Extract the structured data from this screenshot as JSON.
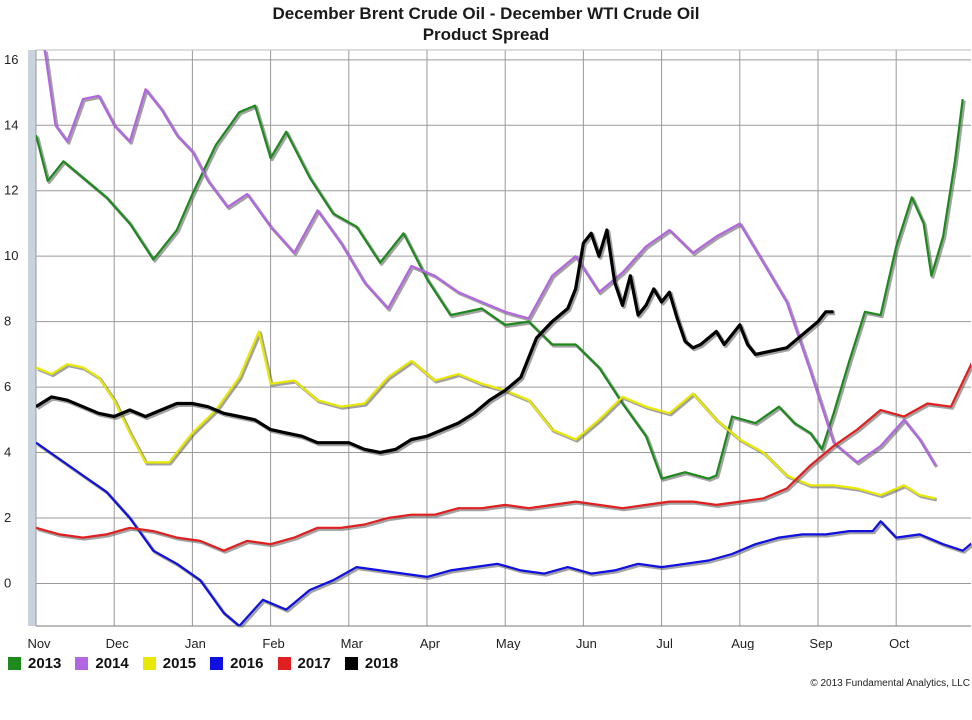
{
  "title_line1": "December Brent Crude Oil - December WTI Crude Oil",
  "title_line2": "Product Spread",
  "copyright": "© 2013 Fundamental Analytics, LLC",
  "chart_data": {
    "type": "line",
    "title": "December Brent Crude Oil - December WTI Crude Oil Product Spread",
    "xlabel": "",
    "ylabel": "",
    "ylim": [
      -1.3,
      16.3
    ],
    "y_ticks": [
      0,
      2,
      4,
      6,
      8,
      10,
      12,
      14,
      16
    ],
    "x_ticks": [
      "Nov",
      "Dec",
      "Jan",
      "Feb",
      "Mar",
      "Apr",
      "May",
      "Jun",
      "Jul",
      "Aug",
      "Sep",
      "Oct"
    ],
    "x_range_months": [
      0,
      11.85
    ],
    "grid": true,
    "legend_position": "bottom-left",
    "series": [
      {
        "name": "2013",
        "color": "#1e8a1e",
        "points": [
          [
            0,
            13.7
          ],
          [
            0.15,
            12.3
          ],
          [
            0.35,
            12.9
          ],
          [
            0.6,
            12.4
          ],
          [
            0.9,
            11.8
          ],
          [
            1.2,
            11.0
          ],
          [
            1.5,
            9.9
          ],
          [
            1.8,
            10.8
          ],
          [
            2.0,
            11.9
          ],
          [
            2.3,
            13.4
          ],
          [
            2.6,
            14.4
          ],
          [
            2.8,
            14.6
          ],
          [
            3.0,
            13.0
          ],
          [
            3.2,
            13.8
          ],
          [
            3.5,
            12.4
          ],
          [
            3.8,
            11.3
          ],
          [
            4.1,
            10.9
          ],
          [
            4.4,
            9.8
          ],
          [
            4.7,
            10.7
          ],
          [
            5.0,
            9.3
          ],
          [
            5.3,
            8.2
          ],
          [
            5.7,
            8.4
          ],
          [
            6.0,
            7.9
          ],
          [
            6.3,
            8.0
          ],
          [
            6.6,
            7.3
          ],
          [
            6.9,
            7.3
          ],
          [
            7.2,
            6.6
          ],
          [
            7.5,
            5.5
          ],
          [
            7.8,
            4.5
          ],
          [
            8.0,
            3.2
          ],
          [
            8.3,
            3.4
          ],
          [
            8.6,
            3.2
          ],
          [
            8.7,
            3.3
          ],
          [
            8.9,
            5.1
          ],
          [
            9.2,
            4.9
          ],
          [
            9.5,
            5.4
          ],
          [
            9.7,
            4.9
          ],
          [
            9.9,
            4.6
          ],
          [
            10.05,
            4.1
          ],
          [
            10.2,
            5.2
          ],
          [
            10.4,
            6.8
          ],
          [
            10.6,
            8.3
          ],
          [
            10.8,
            8.2
          ],
          [
            11.0,
            10.3
          ],
          [
            11.2,
            11.8
          ],
          [
            11.35,
            11.0
          ],
          [
            11.45,
            9.4
          ],
          [
            11.6,
            10.6
          ],
          [
            11.75,
            12.9
          ],
          [
            11.85,
            14.8
          ]
        ]
      },
      {
        "name": "2014",
        "color": "#b266e0",
        "points": [
          [
            0.1,
            16.5
          ],
          [
            0.25,
            14.0
          ],
          [
            0.4,
            13.5
          ],
          [
            0.6,
            14.8
          ],
          [
            0.8,
            14.9
          ],
          [
            1.0,
            14.0
          ],
          [
            1.2,
            13.5
          ],
          [
            1.4,
            15.1
          ],
          [
            1.6,
            14.5
          ],
          [
            1.8,
            13.7
          ],
          [
            2.0,
            13.2
          ],
          [
            2.2,
            12.3
          ],
          [
            2.45,
            11.5
          ],
          [
            2.7,
            11.9
          ],
          [
            3.0,
            10.9
          ],
          [
            3.3,
            10.1
          ],
          [
            3.6,
            11.4
          ],
          [
            3.9,
            10.4
          ],
          [
            4.2,
            9.2
          ],
          [
            4.5,
            8.4
          ],
          [
            4.8,
            9.7
          ],
          [
            5.1,
            9.4
          ],
          [
            5.4,
            8.9
          ],
          [
            5.7,
            8.6
          ],
          [
            6.0,
            8.3
          ],
          [
            6.3,
            8.1
          ],
          [
            6.6,
            9.4
          ],
          [
            6.9,
            10.0
          ],
          [
            7.2,
            8.9
          ],
          [
            7.5,
            9.5
          ],
          [
            7.8,
            10.3
          ],
          [
            8.1,
            10.8
          ],
          [
            8.4,
            10.1
          ],
          [
            8.7,
            10.6
          ],
          [
            9.0,
            11.0
          ],
          [
            9.3,
            9.8
          ],
          [
            9.6,
            8.6
          ],
          [
            9.9,
            6.5
          ],
          [
            10.2,
            4.3
          ],
          [
            10.5,
            3.7
          ],
          [
            10.8,
            4.2
          ],
          [
            11.1,
            5.0
          ],
          [
            11.3,
            4.4
          ],
          [
            11.5,
            3.6
          ]
        ]
      },
      {
        "name": "2015",
        "color": "#e8e800",
        "points": [
          [
            0,
            6.6
          ],
          [
            0.2,
            6.4
          ],
          [
            0.4,
            6.7
          ],
          [
            0.6,
            6.6
          ],
          [
            0.8,
            6.3
          ],
          [
            1.0,
            5.6
          ],
          [
            1.2,
            4.6
          ],
          [
            1.4,
            3.7
          ],
          [
            1.7,
            3.7
          ],
          [
            2.0,
            4.6
          ],
          [
            2.3,
            5.3
          ],
          [
            2.6,
            6.3
          ],
          [
            2.85,
            7.7
          ],
          [
            3.0,
            6.1
          ],
          [
            3.3,
            6.2
          ],
          [
            3.6,
            5.6
          ],
          [
            3.9,
            5.4
          ],
          [
            4.2,
            5.5
          ],
          [
            4.5,
            6.3
          ],
          [
            4.8,
            6.8
          ],
          [
            5.1,
            6.2
          ],
          [
            5.4,
            6.4
          ],
          [
            5.7,
            6.1
          ],
          [
            6.0,
            5.9
          ],
          [
            6.3,
            5.6
          ],
          [
            6.6,
            4.7
          ],
          [
            6.9,
            4.4
          ],
          [
            7.2,
            5.0
          ],
          [
            7.5,
            5.7
          ],
          [
            7.8,
            5.4
          ],
          [
            8.1,
            5.2
          ],
          [
            8.4,
            5.8
          ],
          [
            8.7,
            5.0
          ],
          [
            9.0,
            4.4
          ],
          [
            9.3,
            4.0
          ],
          [
            9.6,
            3.3
          ],
          [
            9.9,
            3.0
          ],
          [
            10.2,
            3.0
          ],
          [
            10.5,
            2.9
          ],
          [
            10.8,
            2.7
          ],
          [
            11.1,
            3.0
          ],
          [
            11.3,
            2.7
          ],
          [
            11.5,
            2.6
          ]
        ]
      },
      {
        "name": "2016",
        "color": "#1010e0",
        "points": [
          [
            0,
            4.3
          ],
          [
            0.3,
            3.8
          ],
          [
            0.6,
            3.3
          ],
          [
            0.9,
            2.8
          ],
          [
            1.2,
            2.0
          ],
          [
            1.5,
            1.0
          ],
          [
            1.8,
            0.6
          ],
          [
            2.1,
            0.1
          ],
          [
            2.4,
            -0.9
          ],
          [
            2.6,
            -1.3
          ],
          [
            2.9,
            -0.5
          ],
          [
            3.2,
            -0.8
          ],
          [
            3.5,
            -0.2
          ],
          [
            3.8,
            0.1
          ],
          [
            4.1,
            0.5
          ],
          [
            4.4,
            0.4
          ],
          [
            4.7,
            0.3
          ],
          [
            5.0,
            0.2
          ],
          [
            5.3,
            0.4
          ],
          [
            5.6,
            0.5
          ],
          [
            5.9,
            0.6
          ],
          [
            6.2,
            0.4
          ],
          [
            6.5,
            0.3
          ],
          [
            6.8,
            0.5
          ],
          [
            7.1,
            0.3
          ],
          [
            7.4,
            0.4
          ],
          [
            7.7,
            0.6
          ],
          [
            8.0,
            0.5
          ],
          [
            8.3,
            0.6
          ],
          [
            8.6,
            0.7
          ],
          [
            8.9,
            0.9
          ],
          [
            9.2,
            1.2
          ],
          [
            9.5,
            1.4
          ],
          [
            9.8,
            1.5
          ],
          [
            10.1,
            1.5
          ],
          [
            10.4,
            1.6
          ],
          [
            10.7,
            1.6
          ],
          [
            10.8,
            1.9
          ],
          [
            11.0,
            1.4
          ],
          [
            11.3,
            1.5
          ],
          [
            11.6,
            1.2
          ],
          [
            11.85,
            1.0
          ],
          [
            12.0,
            1.3
          ]
        ]
      },
      {
        "name": "2017",
        "color": "#e02020",
        "points": [
          [
            0,
            1.7
          ],
          [
            0.3,
            1.5
          ],
          [
            0.6,
            1.4
          ],
          [
            0.9,
            1.5
          ],
          [
            1.2,
            1.7
          ],
          [
            1.5,
            1.6
          ],
          [
            1.8,
            1.4
          ],
          [
            2.1,
            1.3
          ],
          [
            2.4,
            1.0
          ],
          [
            2.7,
            1.3
          ],
          [
            3.0,
            1.2
          ],
          [
            3.3,
            1.4
          ],
          [
            3.6,
            1.7
          ],
          [
            3.9,
            1.7
          ],
          [
            4.2,
            1.8
          ],
          [
            4.5,
            2.0
          ],
          [
            4.8,
            2.1
          ],
          [
            5.1,
            2.1
          ],
          [
            5.4,
            2.3
          ],
          [
            5.7,
            2.3
          ],
          [
            6.0,
            2.4
          ],
          [
            6.3,
            2.3
          ],
          [
            6.6,
            2.4
          ],
          [
            6.9,
            2.5
          ],
          [
            7.2,
            2.4
          ],
          [
            7.5,
            2.3
          ],
          [
            7.8,
            2.4
          ],
          [
            8.1,
            2.5
          ],
          [
            8.4,
            2.5
          ],
          [
            8.7,
            2.4
          ],
          [
            9.0,
            2.5
          ],
          [
            9.3,
            2.6
          ],
          [
            9.6,
            2.9
          ],
          [
            9.9,
            3.6
          ],
          [
            10.2,
            4.2
          ],
          [
            10.5,
            4.7
          ],
          [
            10.8,
            5.3
          ],
          [
            11.1,
            5.1
          ],
          [
            11.4,
            5.5
          ],
          [
            11.7,
            5.4
          ],
          [
            12.0,
            6.9
          ]
        ]
      },
      {
        "name": "2018",
        "color": "#000000",
        "points": [
          [
            0,
            5.4
          ],
          [
            0.2,
            5.7
          ],
          [
            0.4,
            5.6
          ],
          [
            0.6,
            5.4
          ],
          [
            0.8,
            5.2
          ],
          [
            1.0,
            5.1
          ],
          [
            1.2,
            5.3
          ],
          [
            1.4,
            5.1
          ],
          [
            1.6,
            5.3
          ],
          [
            1.8,
            5.5
          ],
          [
            2.0,
            5.5
          ],
          [
            2.2,
            5.4
          ],
          [
            2.4,
            5.2
          ],
          [
            2.6,
            5.1
          ],
          [
            2.8,
            5.0
          ],
          [
            3.0,
            4.7
          ],
          [
            3.2,
            4.6
          ],
          [
            3.4,
            4.5
          ],
          [
            3.6,
            4.3
          ],
          [
            3.8,
            4.3
          ],
          [
            4.0,
            4.3
          ],
          [
            4.2,
            4.1
          ],
          [
            4.4,
            4.0
          ],
          [
            4.6,
            4.1
          ],
          [
            4.8,
            4.4
          ],
          [
            5.0,
            4.5
          ],
          [
            5.2,
            4.7
          ],
          [
            5.4,
            4.9
          ],
          [
            5.6,
            5.2
          ],
          [
            5.8,
            5.6
          ],
          [
            6.0,
            5.9
          ],
          [
            6.2,
            6.3
          ],
          [
            6.4,
            7.5
          ],
          [
            6.6,
            8.0
          ],
          [
            6.8,
            8.4
          ],
          [
            6.9,
            9.0
          ],
          [
            7.0,
            10.4
          ],
          [
            7.1,
            10.7
          ],
          [
            7.2,
            10.0
          ],
          [
            7.3,
            10.8
          ],
          [
            7.4,
            9.2
          ],
          [
            7.5,
            8.5
          ],
          [
            7.6,
            9.4
          ],
          [
            7.7,
            8.2
          ],
          [
            7.8,
            8.5
          ],
          [
            7.9,
            9.0
          ],
          [
            8.0,
            8.6
          ],
          [
            8.1,
            8.9
          ],
          [
            8.2,
            8.1
          ],
          [
            8.3,
            7.4
          ],
          [
            8.4,
            7.2
          ],
          [
            8.5,
            7.3
          ],
          [
            8.6,
            7.5
          ],
          [
            8.7,
            7.7
          ],
          [
            8.8,
            7.3
          ],
          [
            8.9,
            7.6
          ],
          [
            9.0,
            7.9
          ],
          [
            9.1,
            7.3
          ],
          [
            9.2,
            7.0
          ],
          [
            9.4,
            7.1
          ],
          [
            9.6,
            7.2
          ],
          [
            9.8,
            7.6
          ],
          [
            10.0,
            8.0
          ],
          [
            10.1,
            8.3
          ],
          [
            10.2,
            8.3
          ]
        ]
      }
    ]
  }
}
